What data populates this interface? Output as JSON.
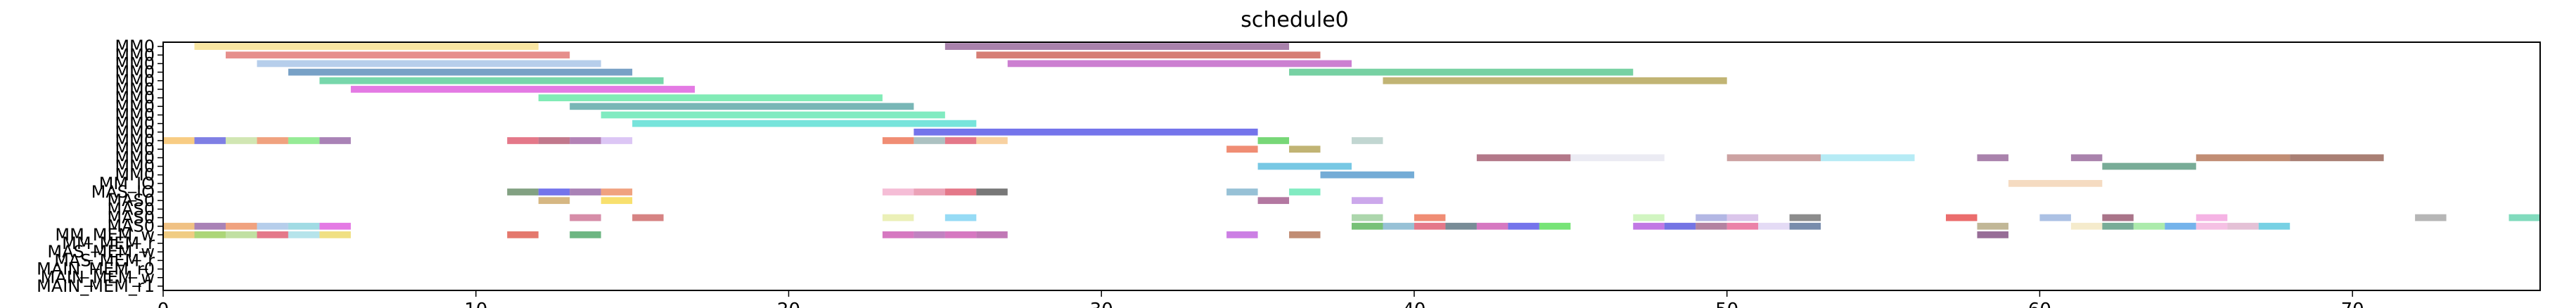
{
  "chart_data": {
    "type": "gantt",
    "title": "schedule0",
    "xlim": [
      0,
      76
    ],
    "x_ticks": [
      0,
      10,
      20,
      30,
      40,
      50,
      60,
      70
    ],
    "rows": [
      "MAIN_MEM_r1",
      "MAIN_MEM_w",
      "MAIN_MEM_r0",
      "MAS_MEM_r",
      "MAS_MEM_w",
      "MM_MEM_r",
      "MM_MEM_w",
      "MAS0",
      "MAS0",
      "MAS0",
      "MAS0",
      "MAS_IO",
      "MM_IO",
      "MM0",
      "MM0",
      "MM0",
      "MM0",
      "MM0",
      "MM0",
      "MM0",
      "MM0",
      "MM0",
      "MM0",
      "MM0",
      "MM0",
      "MM0",
      "MM0",
      "MM0",
      "MM0"
    ],
    "tasks": [
      {
        "row": 28,
        "start": 1,
        "end": 12,
        "color": "#f5d76e"
      },
      {
        "row": 28,
        "start": 25,
        "end": 36,
        "color": "#7b3f7f"
      },
      {
        "row": 27,
        "start": 2,
        "end": 13,
        "color": "#d9534f"
      },
      {
        "row": 27,
        "start": 26,
        "end": 37,
        "color": "#c0392b"
      },
      {
        "row": 26,
        "start": 3,
        "end": 14,
        "color": "#8fb3e0"
      },
      {
        "row": 26,
        "start": 27,
        "end": 38,
        "color": "#b03ab8"
      },
      {
        "row": 25,
        "start": 4,
        "end": 15,
        "color": "#2f6fa8"
      },
      {
        "row": 25,
        "start": 36,
        "end": 47,
        "color": "#2eb872"
      },
      {
        "row": 24,
        "start": 5,
        "end": 16,
        "color": "#2ec27e"
      },
      {
        "row": 24,
        "start": 39,
        "end": 50,
        "color": "#a08c2a"
      },
      {
        "row": 23,
        "start": 6,
        "end": 17,
        "color": "#d633d6"
      },
      {
        "row": 22,
        "start": 12,
        "end": 23,
        "color": "#3de08f"
      },
      {
        "row": 21,
        "start": 13,
        "end": 24,
        "color": "#2f8f8f"
      },
      {
        "row": 20,
        "start": 14,
        "end": 25,
        "color": "#3de0a0"
      },
      {
        "row": 19,
        "start": 15,
        "end": 26,
        "color": "#2ed6c8"
      },
      {
        "row": 18,
        "start": 24,
        "end": 35,
        "color": "#2a2ae0"
      },
      {
        "row": 17,
        "start": 0,
        "end": 1,
        "color": "#f5b041"
      },
      {
        "row": 17,
        "start": 1,
        "end": 2,
        "color": "#3b3bd6"
      },
      {
        "row": 17,
        "start": 2,
        "end": 3,
        "color": "#b8d98a"
      },
      {
        "row": 17,
        "start": 3,
        "end": 4,
        "color": "#e8703a"
      },
      {
        "row": 17,
        "start": 4,
        "end": 5,
        "color": "#5ee05e"
      },
      {
        "row": 17,
        "start": 5,
        "end": 6,
        "color": "#7b3f8f"
      },
      {
        "row": 17,
        "start": 11,
        "end": 12,
        "color": "#d62f4a"
      },
      {
        "row": 17,
        "start": 12,
        "end": 13,
        "color": "#a0304f"
      },
      {
        "row": 17,
        "start": 13,
        "end": 14,
        "color": "#8a3f8f"
      },
      {
        "row": 17,
        "start": 14,
        "end": 15,
        "color": "#c9a8f0"
      },
      {
        "row": 17,
        "start": 23,
        "end": 24,
        "color": "#e8502a"
      },
      {
        "row": 17,
        "start": 24,
        "end": 25,
        "color": "#7fa0a0"
      },
      {
        "row": 17,
        "start": 25,
        "end": 26,
        "color": "#d62f4a"
      },
      {
        "row": 17,
        "start": 26,
        "end": 27,
        "color": "#f5b86e"
      },
      {
        "row": 17,
        "start": 35,
        "end": 36,
        "color": "#2ec22e"
      },
      {
        "row": 17,
        "start": 38,
        "end": 39,
        "color": "#9fc0b8"
      },
      {
        "row": 16,
        "start": 34,
        "end": 35,
        "color": "#e8502a"
      },
      {
        "row": 16,
        "start": 36,
        "end": 37,
        "color": "#a08c2a"
      },
      {
        "row": 15,
        "start": 42,
        "end": 45,
        "color": "#8a2f4a"
      },
      {
        "row": 15,
        "start": 45,
        "end": 48,
        "color": "#e0e0ec"
      },
      {
        "row": 15,
        "start": 50,
        "end": 53,
        "color": "#b07070"
      },
      {
        "row": 15,
        "start": 53,
        "end": 56,
        "color": "#8fe0f0"
      },
      {
        "row": 15,
        "start": 58,
        "end": 59,
        "color": "#7b3f7f"
      },
      {
        "row": 15,
        "start": 61,
        "end": 62,
        "color": "#7b3f7f"
      },
      {
        "row": 15,
        "start": 65,
        "end": 68,
        "color": "#a0502a"
      },
      {
        "row": 15,
        "start": 68,
        "end": 71,
        "color": "#7b3a2a"
      },
      {
        "row": 14,
        "start": 35,
        "end": 38,
        "color": "#2eaad6"
      },
      {
        "row": 14,
        "start": 62,
        "end": 65,
        "color": "#2f7f5f"
      },
      {
        "row": 13,
        "start": 37,
        "end": 40,
        "color": "#2a7fc0"
      },
      {
        "row": 12,
        "start": 59,
        "end": 62,
        "color": "#f0c8a0"
      },
      {
        "row": 11,
        "start": 11,
        "end": 12,
        "color": "#3f6f3f"
      },
      {
        "row": 11,
        "start": 12,
        "end": 13,
        "color": "#2a2ae0"
      },
      {
        "row": 11,
        "start": 13,
        "end": 14,
        "color": "#7b3f8f"
      },
      {
        "row": 11,
        "start": 14,
        "end": 15,
        "color": "#e8703a"
      },
      {
        "row": 11,
        "start": 23,
        "end": 24,
        "color": "#f09ac0"
      },
      {
        "row": 11,
        "start": 24,
        "end": 25,
        "color": "#e07090"
      },
      {
        "row": 11,
        "start": 25,
        "end": 26,
        "color": "#d62f4a"
      },
      {
        "row": 11,
        "start": 26,
        "end": 27,
        "color": "#2f2f2f"
      },
      {
        "row": 11,
        "start": 34,
        "end": 35,
        "color": "#5f9fc0"
      },
      {
        "row": 11,
        "start": 36,
        "end": 37,
        "color": "#3de0a0"
      },
      {
        "row": 10,
        "start": 12,
        "end": 13,
        "color": "#c09040"
      },
      {
        "row": 10,
        "start": 14,
        "end": 15,
        "color": "#f5d020"
      },
      {
        "row": 10,
        "start": 35,
        "end": 36,
        "color": "#8a2f6f"
      },
      {
        "row": 10,
        "start": 38,
        "end": 39,
        "color": "#b07ae0"
      },
      {
        "row": 8,
        "start": 13,
        "end": 14,
        "color": "#c0507a"
      },
      {
        "row": 8,
        "start": 15,
        "end": 16,
        "color": "#c04040"
      },
      {
        "row": 8,
        "start": 23,
        "end": 24,
        "color": "#e0e890"
      },
      {
        "row": 8,
        "start": 25,
        "end": 26,
        "color": "#5ec8f0"
      },
      {
        "row": 8,
        "start": 38,
        "end": 39,
        "color": "#7fc07f"
      },
      {
        "row": 8,
        "start": 40,
        "end": 41,
        "color": "#e8502a"
      },
      {
        "row": 8,
        "start": 47,
        "end": 48,
        "color": "#b8f0a0"
      },
      {
        "row": 8,
        "start": 49,
        "end": 50,
        "color": "#8a90d6"
      },
      {
        "row": 8,
        "start": 50,
        "end": 51,
        "color": "#c8a8e0"
      },
      {
        "row": 8,
        "start": 52,
        "end": 53,
        "color": "#4f4f4f"
      },
      {
        "row": 8,
        "start": 57,
        "end": 58,
        "color": "#e01f1f"
      },
      {
        "row": 8,
        "start": 60,
        "end": 61,
        "color": "#7f9fd6"
      },
      {
        "row": 8,
        "start": 62,
        "end": 63,
        "color": "#7b2a4a"
      },
      {
        "row": 8,
        "start": 65,
        "end": 66,
        "color": "#f08ad6"
      },
      {
        "row": 8,
        "start": 72,
        "end": 73,
        "color": "#8f8f8f"
      },
      {
        "row": 8,
        "start": 75,
        "end": 76,
        "color": "#3ec89a"
      },
      {
        "row": 7,
        "start": 0,
        "end": 1,
        "color": "#e8a040"
      },
      {
        "row": 7,
        "start": 1,
        "end": 2,
        "color": "#7b3f8f"
      },
      {
        "row": 7,
        "start": 2,
        "end": 3,
        "color": "#e8703a"
      },
      {
        "row": 7,
        "start": 3,
        "end": 4,
        "color": "#8fb3e0"
      },
      {
        "row": 7,
        "start": 4,
        "end": 5,
        "color": "#6ec8d6"
      },
      {
        "row": 7,
        "start": 5,
        "end": 6,
        "color": "#d633d6"
      },
      {
        "row": 7,
        "start": 38,
        "end": 39,
        "color": "#2ea02e"
      },
      {
        "row": 7,
        "start": 39,
        "end": 40,
        "color": "#5f9fc0"
      },
      {
        "row": 7,
        "start": 40,
        "end": 41,
        "color": "#d62f4a"
      },
      {
        "row": 7,
        "start": 41,
        "end": 42,
        "color": "#2f4f5f"
      },
      {
        "row": 7,
        "start": 42,
        "end": 43,
        "color": "#c02fa0"
      },
      {
        "row": 7,
        "start": 43,
        "end": 44,
        "color": "#2a2ae0"
      },
      {
        "row": 7,
        "start": 44,
        "end": 45,
        "color": "#2ed62e"
      },
      {
        "row": 7,
        "start": 47,
        "end": 48,
        "color": "#a02fd6"
      },
      {
        "row": 7,
        "start": 48,
        "end": 49,
        "color": "#2a2ad6"
      },
      {
        "row": 7,
        "start": 49,
        "end": 50,
        "color": "#8a3f6f"
      },
      {
        "row": 7,
        "start": 50,
        "end": 51,
        "color": "#e03f7a"
      },
      {
        "row": 7,
        "start": 51,
        "end": 52,
        "color": "#d6c8f0"
      },
      {
        "row": 7,
        "start": 52,
        "end": 53,
        "color": "#2f4f7f"
      },
      {
        "row": 7,
        "start": 58,
        "end": 59,
        "color": "#a09060"
      },
      {
        "row": 7,
        "start": 61,
        "end": 62,
        "color": "#f0e0b0"
      },
      {
        "row": 7,
        "start": 62,
        "end": 63,
        "color": "#2f7f5f"
      },
      {
        "row": 7,
        "start": 63,
        "end": 64,
        "color": "#7fe07f"
      },
      {
        "row": 7,
        "start": 64,
        "end": 65,
        "color": "#2a8ae0"
      },
      {
        "row": 7,
        "start": 65,
        "end": 66,
        "color": "#f0a0d6"
      },
      {
        "row": 7,
        "start": 66,
        "end": 67,
        "color": "#d6a0c0"
      },
      {
        "row": 7,
        "start": 67,
        "end": 68,
        "color": "#2eb8d6"
      },
      {
        "row": 6,
        "start": 0,
        "end": 1,
        "color": "#e8b040"
      },
      {
        "row": 6,
        "start": 1,
        "end": 2,
        "color": "#7fc02e"
      },
      {
        "row": 6,
        "start": 2,
        "end": 3,
        "color": "#a0d070"
      },
      {
        "row": 6,
        "start": 3,
        "end": 4,
        "color": "#d62f4a"
      },
      {
        "row": 6,
        "start": 4,
        "end": 5,
        "color": "#8fd6e0"
      },
      {
        "row": 6,
        "start": 5,
        "end": 6,
        "color": "#e8d040"
      },
      {
        "row": 6,
        "start": 11,
        "end": 12,
        "color": "#d62f1f"
      },
      {
        "row": 6,
        "start": 13,
        "end": 14,
        "color": "#1f8f3f"
      },
      {
        "row": 6,
        "start": 23,
        "end": 24,
        "color": "#c02fa0"
      },
      {
        "row": 6,
        "start": 24,
        "end": 25,
        "color": "#a03fa0"
      },
      {
        "row": 6,
        "start": 25,
        "end": 26,
        "color": "#c02fa0"
      },
      {
        "row": 6,
        "start": 26,
        "end": 27,
        "color": "#a02f8f"
      },
      {
        "row": 6,
        "start": 34,
        "end": 35,
        "color": "#b03ad6"
      },
      {
        "row": 6,
        "start": 36,
        "end": 37,
        "color": "#a0502a"
      },
      {
        "row": 6,
        "start": 58,
        "end": 59,
        "color": "#5f1f5f"
      }
    ]
  }
}
